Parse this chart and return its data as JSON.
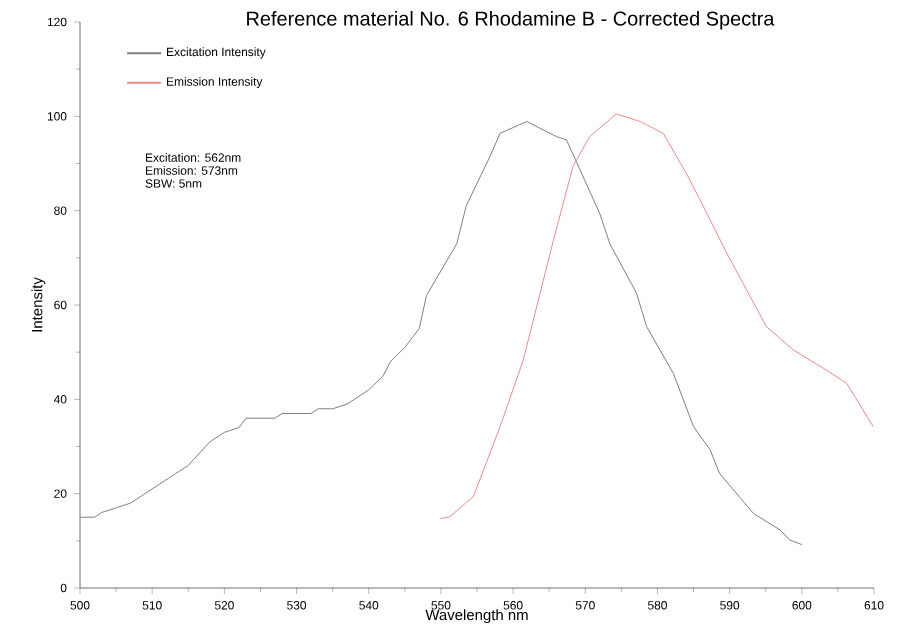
{
  "chart_data": {
    "type": "line",
    "title": "Reference material No. 6  Rhodamine B - Corrected Spectra",
    "xlabel": "Wavelength nm",
    "ylabel": "Intensity",
    "xlim": [
      500,
      610
    ],
    "ylim": [
      0,
      120
    ],
    "xticks": [
      500,
      510,
      520,
      530,
      540,
      550,
      560,
      570,
      580,
      590,
      600,
      610
    ],
    "yticks": [
      0,
      20,
      40,
      60,
      80,
      100,
      120
    ],
    "grid": false,
    "legend": "top left",
    "marker": "none",
    "line_style": "solid",
    "annotations": [
      "Excitation: 562nm",
      "Emission: 573nm",
      "SBW: 5nm"
    ],
    "series": [
      {
        "name": "Excitation Intensity",
        "color": "#808080",
        "x": [
          500,
          502,
          503,
          505,
          507,
          510,
          515,
          518,
          520,
          522,
          523,
          527,
          528,
          532,
          533,
          535,
          537,
          540,
          542,
          543,
          545,
          547,
          548,
          552.2,
          553.5,
          556.8,
          558.2,
          561.9,
          566,
          567.4,
          572,
          573.4,
          577.1,
          578.5,
          582.2,
          585,
          587.3,
          588.6,
          593.3,
          597,
          598.3,
          600
        ],
        "values": [
          15,
          15,
          16,
          17,
          18,
          21,
          26,
          31,
          33,
          34,
          36,
          36,
          37,
          37,
          38,
          38,
          39,
          42,
          45,
          48,
          51,
          55,
          62,
          73,
          81,
          91.5,
          96.4,
          98.9,
          95.7,
          95,
          79.4,
          73,
          62.5,
          55.4,
          45.5,
          34.2,
          29.3,
          24.3,
          15.8,
          12.3,
          10.2,
          9.2
        ]
      },
      {
        "name": "Emission Intensity",
        "color": "#f08a8a",
        "x": [
          549.9,
          551.2,
          554.5,
          558.2,
          561.4,
          565.6,
          568.3,
          570.6,
          574.3,
          577.6,
          580.8,
          584,
          585.9,
          589.6,
          595.1,
          598.8,
          603.4,
          606.2,
          609.9
        ],
        "values": [
          14.7,
          15.1,
          19.4,
          34.2,
          48.3,
          73.8,
          89.4,
          95.7,
          100.5,
          98.9,
          96.4,
          87.9,
          82.3,
          71,
          55.4,
          50.5,
          46.2,
          43.4,
          34.2
        ]
      }
    ]
  }
}
